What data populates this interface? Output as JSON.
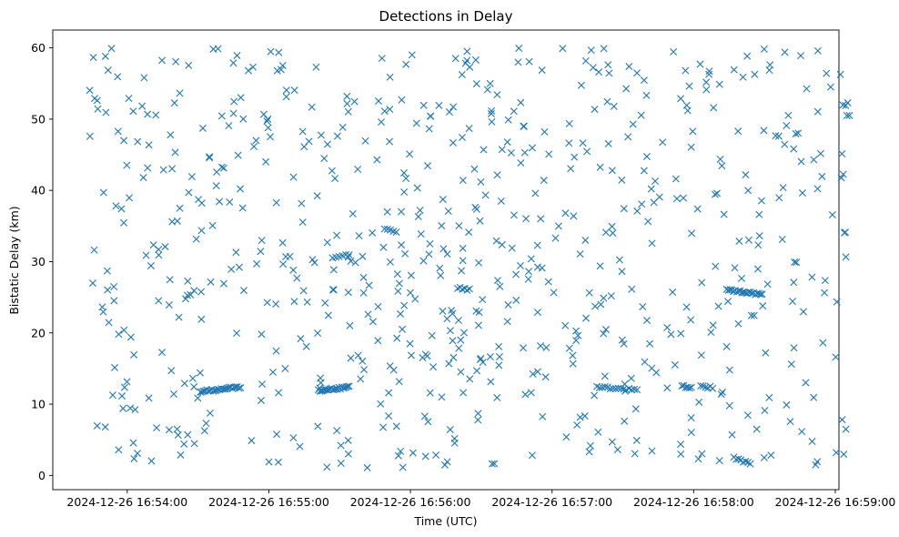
{
  "chart_data": {
    "type": "scatter",
    "title": "Detections in Delay",
    "xlabel": "Time (UTC)",
    "ylabel": "Bistatic Delay (km)",
    "marker": "x",
    "color": "#1f77b4",
    "xlim_seconds_from_16_53_30": [
      0,
      330
    ],
    "ylim": [
      -2,
      62.5
    ],
    "x_ticks": [
      {
        "t": 30,
        "label": "2024-12-26 16:54:00"
      },
      {
        "t": 90,
        "label": "2024-12-26 16:55:00"
      },
      {
        "t": 150,
        "label": "2024-12-26 16:56:00"
      },
      {
        "t": 210,
        "label": "2024-12-26 16:57:00"
      },
      {
        "t": 270,
        "label": "2024-12-26 16:58:00"
      },
      {
        "t": 330,
        "label": "2024-12-26 16:59:00"
      }
    ],
    "y_ticks": [
      {
        "v": 0,
        "label": "0"
      },
      {
        "v": 10,
        "label": "10"
      },
      {
        "v": 20,
        "label": "20"
      },
      {
        "v": 30,
        "label": "30"
      },
      {
        "v": 40,
        "label": "40"
      },
      {
        "v": 50,
        "label": "50"
      },
      {
        "v": 60,
        "label": "60"
      }
    ],
    "tracks": [
      {
        "t_start": 61,
        "t_end": 78,
        "y_start": 11.8,
        "y_end": 12.4,
        "count": 26
      },
      {
        "t_start": 111,
        "t_end": 124,
        "y_start": 11.9,
        "y_end": 12.4,
        "count": 22
      },
      {
        "t_start": 229,
        "t_end": 246,
        "y_start": 12.4,
        "y_end": 12.0,
        "count": 16
      },
      {
        "t_start": 265,
        "t_end": 269,
        "y_start": 12.6,
        "y_end": 12.2,
        "count": 6
      },
      {
        "t_start": 273,
        "t_end": 278,
        "y_start": 12.6,
        "y_end": 12.3,
        "count": 6
      },
      {
        "t_start": 284,
        "t_end": 299,
        "y_start": 26.0,
        "y_end": 25.4,
        "count": 22
      },
      {
        "t_start": 139,
        "t_end": 144,
        "y_start": 34.5,
        "y_end": 34.3,
        "count": 5
      },
      {
        "t_start": 170,
        "t_end": 175,
        "y_start": 26.3,
        "y_end": 26.1,
        "count": 6
      },
      {
        "t_start": 287,
        "t_end": 294,
        "y_start": 2.5,
        "y_end": 1.6,
        "count": 8
      },
      {
        "t_start": 117,
        "t_end": 124,
        "y_start": 30.6,
        "y_end": 31.0,
        "count": 6
      }
    ],
    "scatter_seed": 20241226,
    "scatter_count": 700,
    "scatter_x_range": [
      13,
      336
    ],
    "scatter_y_range": [
      1,
      60
    ]
  }
}
